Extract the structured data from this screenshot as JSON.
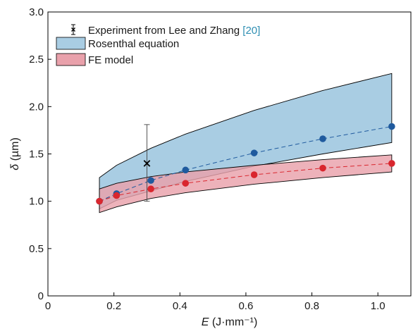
{
  "chart_data": {
    "type": "line",
    "title": "",
    "xlabel": {
      "var": "E",
      "unit": " (J·mm⁻¹)"
    },
    "ylabel": {
      "var": "δ",
      "unit": " (µm)"
    },
    "xlim": [
      0,
      1.1
    ],
    "ylim": [
      0,
      3.0
    ],
    "x_ticks": [
      0,
      0.2,
      0.4,
      0.6,
      0.8,
      1.0
    ],
    "x_tick_labels": [
      "0",
      "0.2",
      "0.4",
      "0.6",
      "0.8",
      "1.0"
    ],
    "y_ticks": [
      0,
      0.5,
      1.0,
      1.5,
      2.0,
      2.5,
      3.0
    ],
    "y_tick_labels": [
      "0",
      "0.5",
      "1.0",
      "1.5",
      "2.0",
      "2.5",
      "3.0"
    ],
    "grid": false,
    "legend_position": "top-left",
    "legend": {
      "experiment": {
        "text": "Experiment from Lee and Zhang ",
        "ref": "[20]"
      },
      "rosenthal": "Rosenthal equation",
      "fe": "FE model"
    },
    "bands": [
      {
        "name": "Rosenthal equation",
        "color": "#a9cde3",
        "x": [
          0.156,
          0.208,
          0.312,
          0.417,
          0.625,
          0.833,
          1.042
        ],
        "lower": [
          0.92,
          1.01,
          1.11,
          1.21,
          1.37,
          1.5,
          1.62
        ],
        "upper": [
          1.25,
          1.38,
          1.56,
          1.71,
          1.96,
          2.17,
          2.35
        ]
      },
      {
        "name": "FE model",
        "color": "#e9a1ab",
        "x": [
          0.156,
          0.208,
          0.312,
          0.417,
          0.625,
          0.833,
          1.042
        ],
        "lower": [
          0.88,
          0.94,
          1.03,
          1.09,
          1.18,
          1.25,
          1.31
        ],
        "upper": [
          1.13,
          1.19,
          1.26,
          1.31,
          1.38,
          1.44,
          1.49
        ]
      }
    ],
    "series": [
      {
        "color": "#1f5a9e",
        "x": [
          0.156,
          0.208,
          0.312,
          0.417,
          0.625,
          0.833,
          1.042
        ],
        "y": [
          1.0,
          1.08,
          1.22,
          1.33,
          1.51,
          1.66,
          1.79
        ]
      },
      {
        "color": "#d9262e",
        "x": [
          0.156,
          0.208,
          0.312,
          0.417,
          0.625,
          0.833,
          1.042
        ],
        "y": [
          1.0,
          1.06,
          1.13,
          1.19,
          1.28,
          1.35,
          1.4
        ]
      }
    ],
    "experiment": {
      "name": "Experiment from Lee and Zhang [20]",
      "x": 0.3,
      "y": 1.4,
      "y_low": 1.0,
      "y_high": 1.81,
      "color": "#000000"
    }
  }
}
